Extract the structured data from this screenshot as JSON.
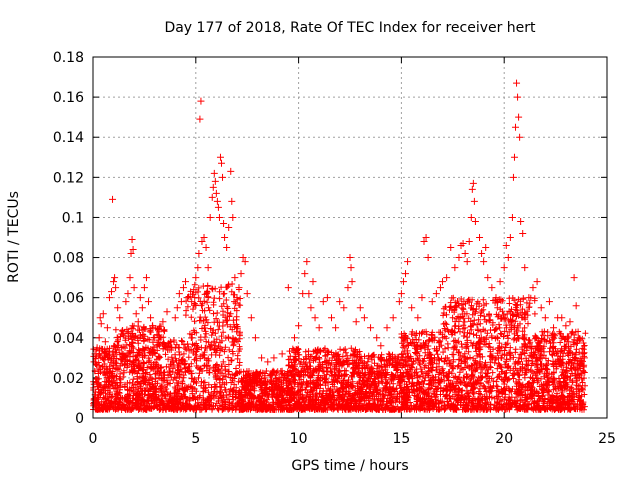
{
  "chart_data": {
    "type": "scatter",
    "title": "Day 177 of 2018, Rate Of TEC Index for receiver hert",
    "xlabel": "GPS time / hours",
    "ylabel": "ROTI / TECUs",
    "xlim": [
      0,
      25
    ],
    "ylim": [
      0,
      0.18
    ],
    "xticks": [
      "0",
      "5",
      "10",
      "15",
      "20",
      "25"
    ],
    "yticks": [
      "0",
      "0.02",
      "0.04",
      "0.06",
      "0.08",
      "0.1",
      "0.12",
      "0.14",
      "0.16",
      "0.18"
    ],
    "grid": true,
    "marker": "+",
    "color": "#ff0000",
    "series": [
      {
        "points": [
          [
            0.05,
            0.028
          ],
          [
            0.1,
            0.032
          ],
          [
            0.2,
            0.035
          ],
          [
            0.3,
            0.04
          ],
          [
            0.35,
            0.05
          ],
          [
            0.4,
            0.047
          ],
          [
            0.5,
            0.052
          ],
          [
            0.6,
            0.038
          ],
          [
            0.7,
            0.045
          ],
          [
            0.8,
            0.06
          ],
          [
            0.9,
            0.063
          ],
          [
            0.95,
            0.109
          ],
          [
            1.0,
            0.068
          ],
          [
            1.05,
            0.07
          ],
          [
            1.1,
            0.065
          ],
          [
            1.2,
            0.055
          ],
          [
            1.3,
            0.05
          ],
          [
            1.5,
            0.042
          ],
          [
            1.6,
            0.058
          ],
          [
            1.7,
            0.062
          ],
          [
            1.8,
            0.07
          ],
          [
            1.85,
            0.082
          ],
          [
            1.9,
            0.089
          ],
          [
            1.95,
            0.084
          ],
          [
            2.0,
            0.065
          ],
          [
            2.1,
            0.052
          ],
          [
            2.2,
            0.048
          ],
          [
            2.3,
            0.06
          ],
          [
            2.4,
            0.055
          ],
          [
            2.5,
            0.065
          ],
          [
            2.6,
            0.07
          ],
          [
            2.7,
            0.058
          ],
          [
            2.8,
            0.05
          ],
          [
            2.9,
            0.046
          ],
          [
            3.0,
            0.04
          ],
          [
            3.2,
            0.044
          ],
          [
            3.4,
            0.048
          ],
          [
            3.6,
            0.053
          ],
          [
            3.8,
            0.035
          ],
          [
            4.0,
            0.05
          ],
          [
            4.1,
            0.055
          ],
          [
            4.2,
            0.062
          ],
          [
            4.3,
            0.058
          ],
          [
            4.4,
            0.065
          ],
          [
            4.5,
            0.068
          ],
          [
            4.6,
            0.06
          ],
          [
            4.8,
            0.058
          ],
          [
            4.9,
            0.064
          ],
          [
            5.0,
            0.07
          ],
          [
            5.1,
            0.075
          ],
          [
            5.15,
            0.082
          ],
          [
            5.2,
            0.149
          ],
          [
            5.25,
            0.158
          ],
          [
            5.3,
            0.088
          ],
          [
            5.4,
            0.09
          ],
          [
            5.5,
            0.085
          ],
          [
            5.6,
            0.075
          ],
          [
            5.7,
            0.1
          ],
          [
            5.8,
            0.11
          ],
          [
            5.85,
            0.115
          ],
          [
            5.9,
            0.122
          ],
          [
            5.95,
            0.118
          ],
          [
            6.0,
            0.112
          ],
          [
            6.05,
            0.108
          ],
          [
            6.1,
            0.105
          ],
          [
            6.15,
            0.1
          ],
          [
            6.2,
            0.13
          ],
          [
            6.25,
            0.127
          ],
          [
            6.3,
            0.12
          ],
          [
            6.35,
            0.097
          ],
          [
            6.4,
            0.09
          ],
          [
            6.5,
            0.085
          ],
          [
            6.6,
            0.095
          ],
          [
            6.7,
            0.123
          ],
          [
            6.75,
            0.108
          ],
          [
            6.8,
            0.1
          ],
          [
            6.9,
            0.07
          ],
          [
            7.0,
            0.06
          ],
          [
            7.1,
            0.065
          ],
          [
            7.2,
            0.072
          ],
          [
            7.3,
            0.08
          ],
          [
            7.4,
            0.078
          ],
          [
            7.5,
            0.062
          ],
          [
            7.7,
            0.05
          ],
          [
            7.9,
            0.04
          ],
          [
            8.2,
            0.03
          ],
          [
            8.5,
            0.028
          ],
          [
            8.8,
            0.03
          ],
          [
            9.2,
            0.032
          ],
          [
            9.5,
            0.065
          ],
          [
            9.8,
            0.04
          ],
          [
            10.0,
            0.046
          ],
          [
            10.2,
            0.062
          ],
          [
            10.3,
            0.072
          ],
          [
            10.4,
            0.078
          ],
          [
            10.5,
            0.062
          ],
          [
            10.6,
            0.055
          ],
          [
            10.7,
            0.068
          ],
          [
            10.8,
            0.05
          ],
          [
            11.0,
            0.045
          ],
          [
            11.2,
            0.058
          ],
          [
            11.4,
            0.06
          ],
          [
            11.6,
            0.05
          ],
          [
            11.8,
            0.045
          ],
          [
            12.0,
            0.058
          ],
          [
            12.2,
            0.055
          ],
          [
            12.4,
            0.065
          ],
          [
            12.5,
            0.08
          ],
          [
            12.55,
            0.075
          ],
          [
            12.6,
            0.068
          ],
          [
            12.8,
            0.048
          ],
          [
            13.0,
            0.055
          ],
          [
            13.2,
            0.05
          ],
          [
            13.5,
            0.045
          ],
          [
            13.8,
            0.04
          ],
          [
            14.0,
            0.036
          ],
          [
            14.3,
            0.045
          ],
          [
            14.6,
            0.05
          ],
          [
            14.9,
            0.058
          ],
          [
            15.0,
            0.062
          ],
          [
            15.1,
            0.068
          ],
          [
            15.2,
            0.072
          ],
          [
            15.3,
            0.078
          ],
          [
            15.5,
            0.055
          ],
          [
            15.8,
            0.05
          ],
          [
            16.0,
            0.06
          ],
          [
            16.1,
            0.088
          ],
          [
            16.2,
            0.09
          ],
          [
            16.3,
            0.08
          ],
          [
            16.5,
            0.058
          ],
          [
            16.7,
            0.062
          ],
          [
            16.9,
            0.065
          ],
          [
            17.0,
            0.068
          ],
          [
            17.2,
            0.07
          ],
          [
            17.4,
            0.085
          ],
          [
            17.6,
            0.075
          ],
          [
            17.8,
            0.08
          ],
          [
            17.9,
            0.086
          ],
          [
            18.0,
            0.087
          ],
          [
            18.1,
            0.082
          ],
          [
            18.2,
            0.078
          ],
          [
            18.3,
            0.088
          ],
          [
            18.4,
            0.1
          ],
          [
            18.45,
            0.114
          ],
          [
            18.5,
            0.117
          ],
          [
            18.55,
            0.108
          ],
          [
            18.6,
            0.098
          ],
          [
            18.8,
            0.09
          ],
          [
            18.9,
            0.082
          ],
          [
            19.0,
            0.078
          ],
          [
            19.1,
            0.085
          ],
          [
            19.2,
            0.07
          ],
          [
            19.4,
            0.065
          ],
          [
            19.6,
            0.06
          ],
          [
            19.8,
            0.068
          ],
          [
            20.0,
            0.075
          ],
          [
            20.1,
            0.086
          ],
          [
            20.2,
            0.08
          ],
          [
            20.3,
            0.09
          ],
          [
            20.4,
            0.1
          ],
          [
            20.45,
            0.12
          ],
          [
            20.5,
            0.13
          ],
          [
            20.55,
            0.145
          ],
          [
            20.6,
            0.167
          ],
          [
            20.65,
            0.16
          ],
          [
            20.7,
            0.15
          ],
          [
            20.75,
            0.14
          ],
          [
            20.8,
            0.098
          ],
          [
            20.9,
            0.092
          ],
          [
            21.0,
            0.075
          ],
          [
            21.2,
            0.06
          ],
          [
            21.4,
            0.065
          ],
          [
            21.6,
            0.068
          ],
          [
            21.8,
            0.055
          ],
          [
            22.0,
            0.05
          ],
          [
            22.2,
            0.058
          ],
          [
            22.4,
            0.045
          ],
          [
            22.6,
            0.05
          ],
          [
            22.8,
            0.05
          ],
          [
            23.0,
            0.046
          ],
          [
            23.2,
            0.048
          ],
          [
            23.4,
            0.07
          ],
          [
            23.5,
            0.056
          ],
          [
            23.6,
            0.04
          ],
          [
            23.8,
            0.032
          ],
          [
            23.9,
            0.03
          ]
        ]
      }
    ]
  }
}
